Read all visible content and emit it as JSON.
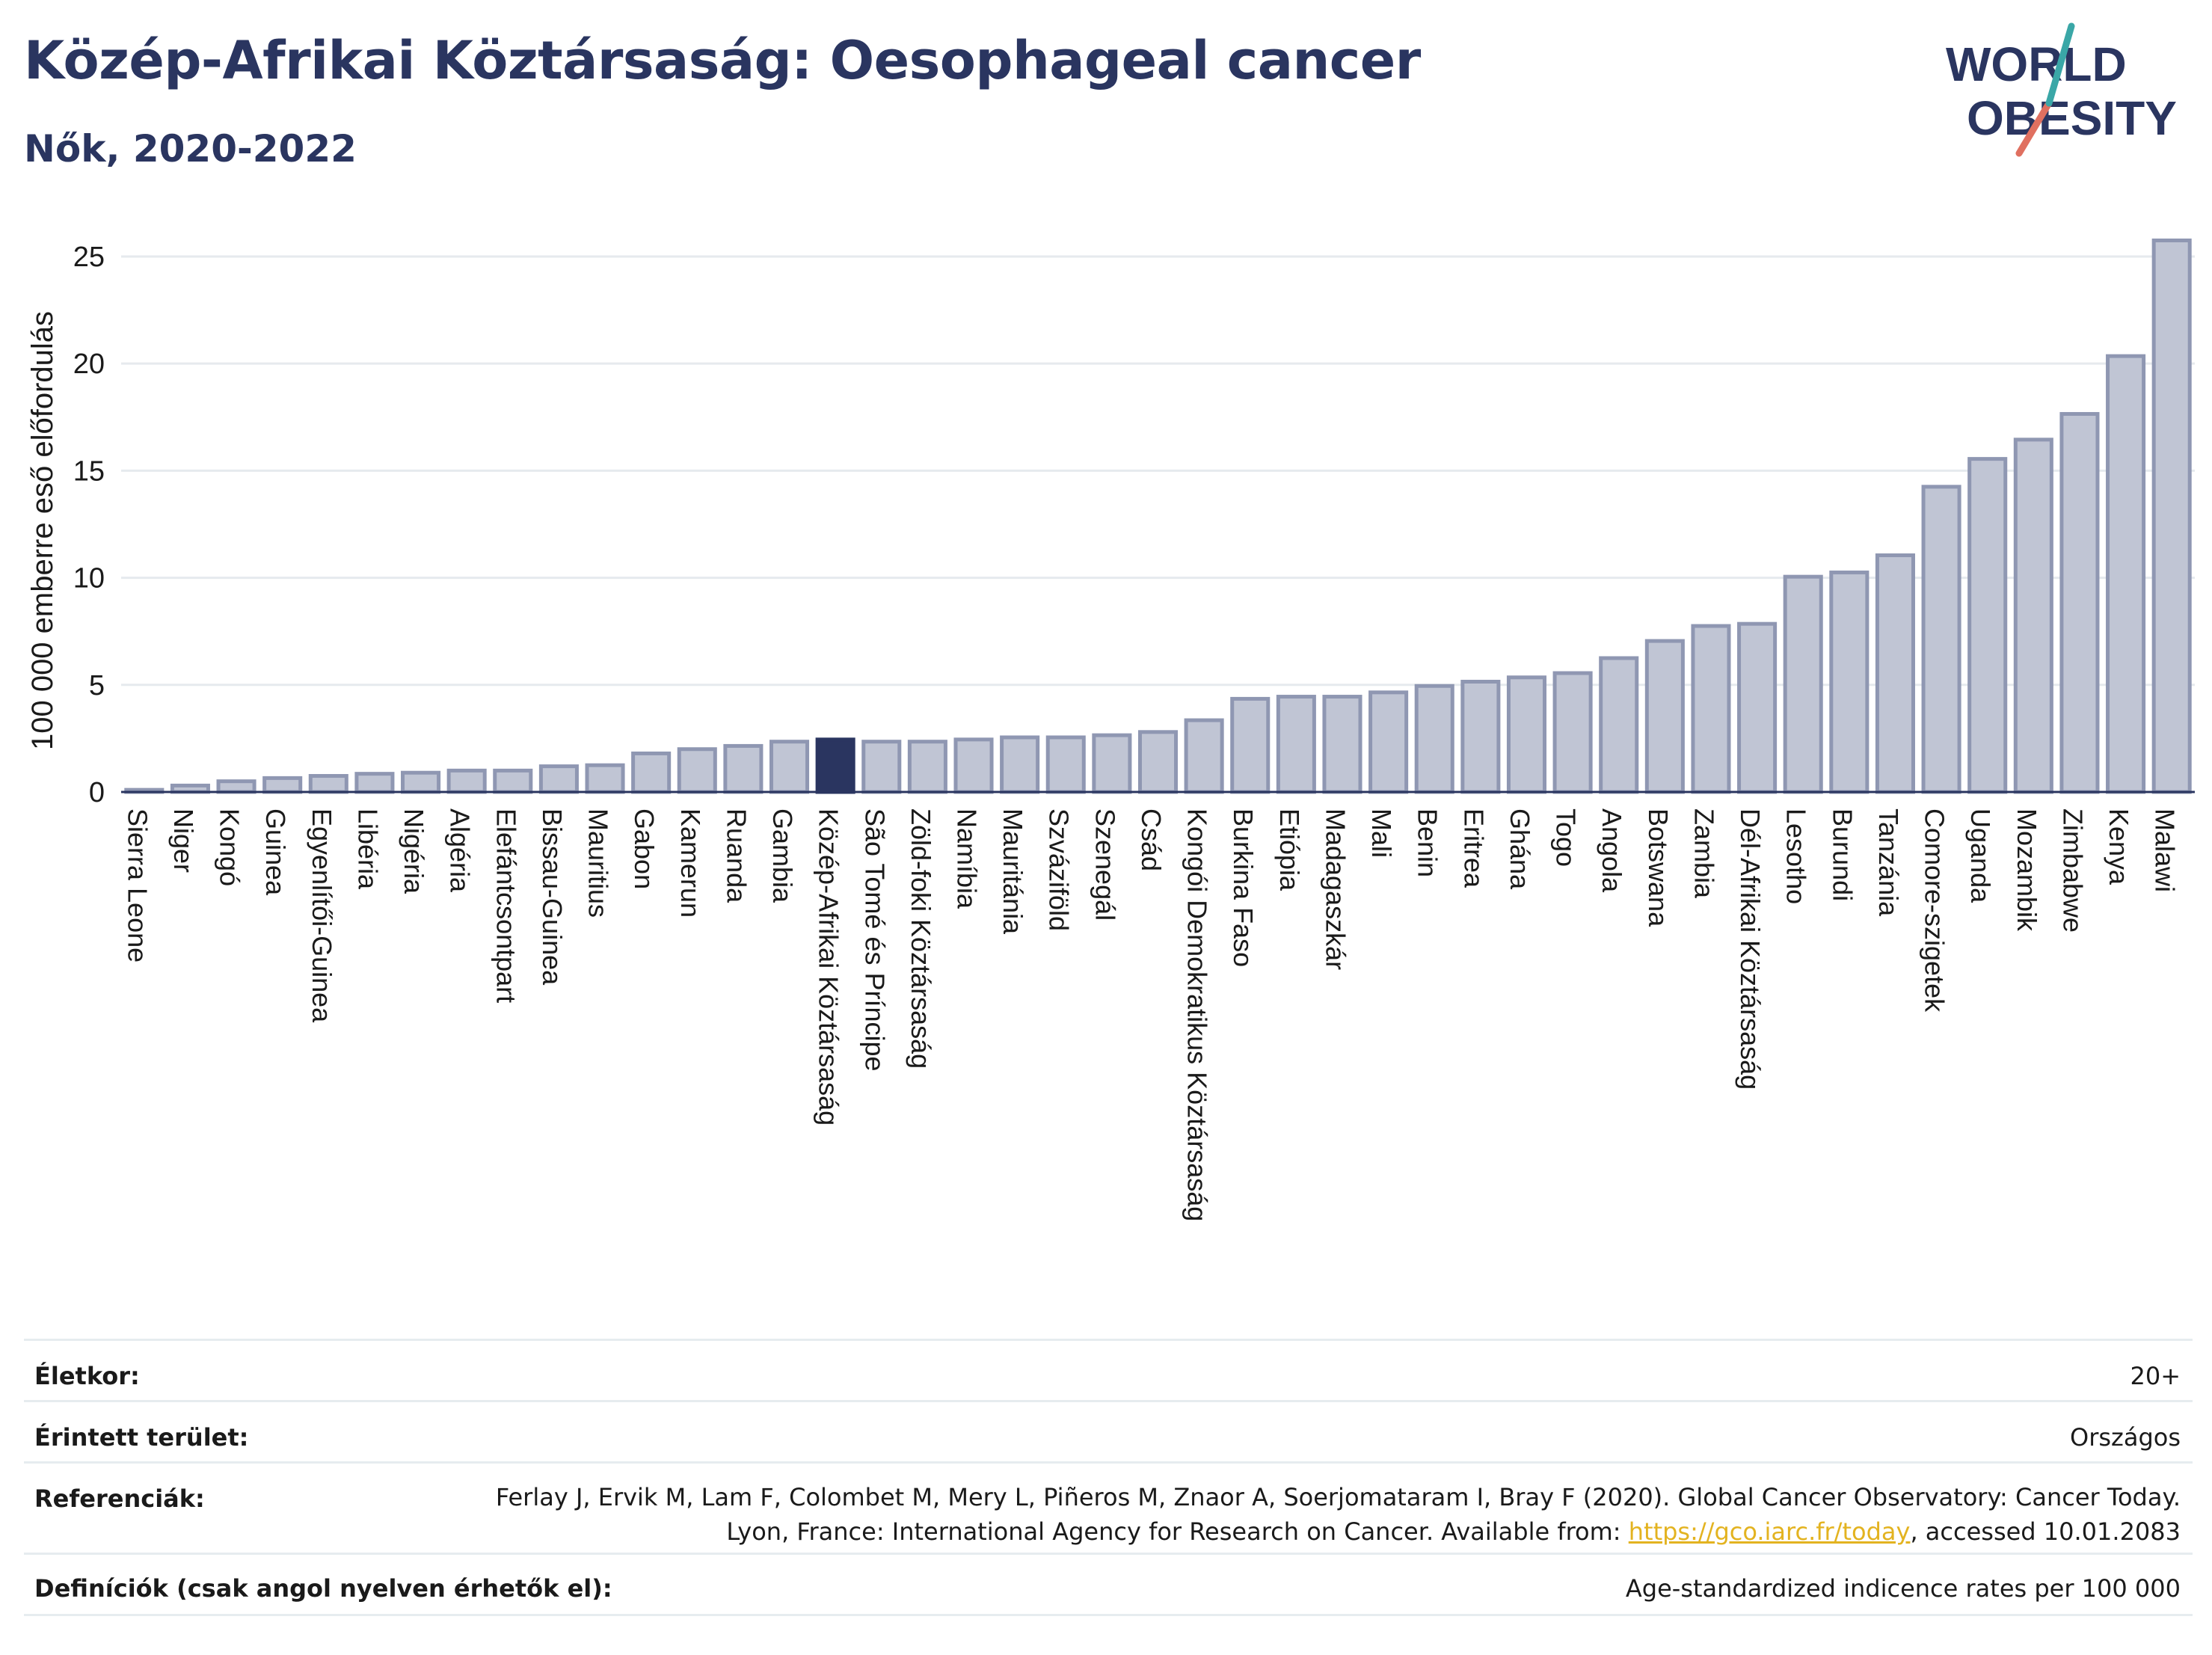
{
  "title": "Közép-Afrikai Köztársaság: Oesophageal cancer",
  "subtitle": "Nők, 2020-2022",
  "logo": {
    "line1": "WORLD",
    "line2": "OBESITY"
  },
  "colors": {
    "bar": "#c0c5d4",
    "bar_stroke": "#8f97b2",
    "highlight": "#2a3560",
    "title": "#2a3560",
    "link": "#e3b320"
  },
  "chart_data": {
    "type": "bar",
    "ylabel": "100 000 emberre eső előfordulás",
    "ylim": [
      0,
      26.5
    ],
    "yticks": [
      0,
      5,
      10,
      15,
      20,
      25
    ],
    "grid": true,
    "highlight": "Közép-Afrikai Köztársaság",
    "categories": [
      "Sierra Leone",
      "Niger",
      "Kongó",
      "Guinea",
      "Egyenlítői-Guinea",
      "Libéria",
      "Nigéria",
      "Algéria",
      "Elefántcsontpart",
      "Bissau-Guinea",
      "Mauritius",
      "Gabon",
      "Kamerun",
      "Ruanda",
      "Gambia",
      "Közép-Afrikai Köztársaság",
      "São Tomé és Príncipe",
      "Zöld-foki Köztársaság",
      "Namíbia",
      "Mauritánia",
      "Szváziföld",
      "Szenegál",
      "Csád",
      "Kongói Demokratikus Köztársaság",
      "Burkina Faso",
      "Etiópia",
      "Madagaszkár",
      "Mali",
      "Benin",
      "Eritrea",
      "Ghána",
      "Togo",
      "Angola",
      "Botswana",
      "Zambia",
      "Dél-Afrikai Köztársaság",
      "Lesotho",
      "Burundi",
      "Tanzánia",
      "Comore-szigetek",
      "Uganda",
      "Mozambik",
      "Zimbabwe",
      "Kenya",
      "Malawi"
    ],
    "values": [
      0.1,
      0.3,
      0.5,
      0.65,
      0.75,
      0.85,
      0.9,
      1.0,
      1.0,
      1.2,
      1.25,
      1.8,
      2.0,
      2.15,
      2.35,
      2.45,
      2.35,
      2.35,
      2.45,
      2.55,
      2.55,
      2.65,
      2.8,
      3.35,
      4.35,
      4.45,
      4.45,
      4.65,
      4.95,
      5.15,
      5.35,
      5.55,
      6.25,
      7.05,
      7.75,
      7.85,
      10.05,
      10.25,
      11.05,
      14.25,
      15.55,
      16.45,
      17.65,
      20.35,
      25.75
    ]
  },
  "meta": {
    "rows": [
      {
        "label": "Életkor:",
        "value": "20+"
      },
      {
        "label": "Érintett terület:",
        "value": "Országos"
      },
      {
        "label": "Referenciák:",
        "value_pre": "Ferlay J, Ervik M, Lam F, Colombet M, Mery L, Piñeros M, Znaor A, Soerjomataram I, Bray F (2020). Global Cancer Observatory: Cancer Today. Lyon, France: International Agency for Research on Cancer. Available from: ",
        "link": "https://gco.iarc.fr/today",
        "value_post": ", accessed 10.01.2083"
      },
      {
        "label": "Definíciók (csak angol nyelven érhetők el):",
        "value": "Age-standardized indicence rates per 100 000"
      }
    ]
  }
}
